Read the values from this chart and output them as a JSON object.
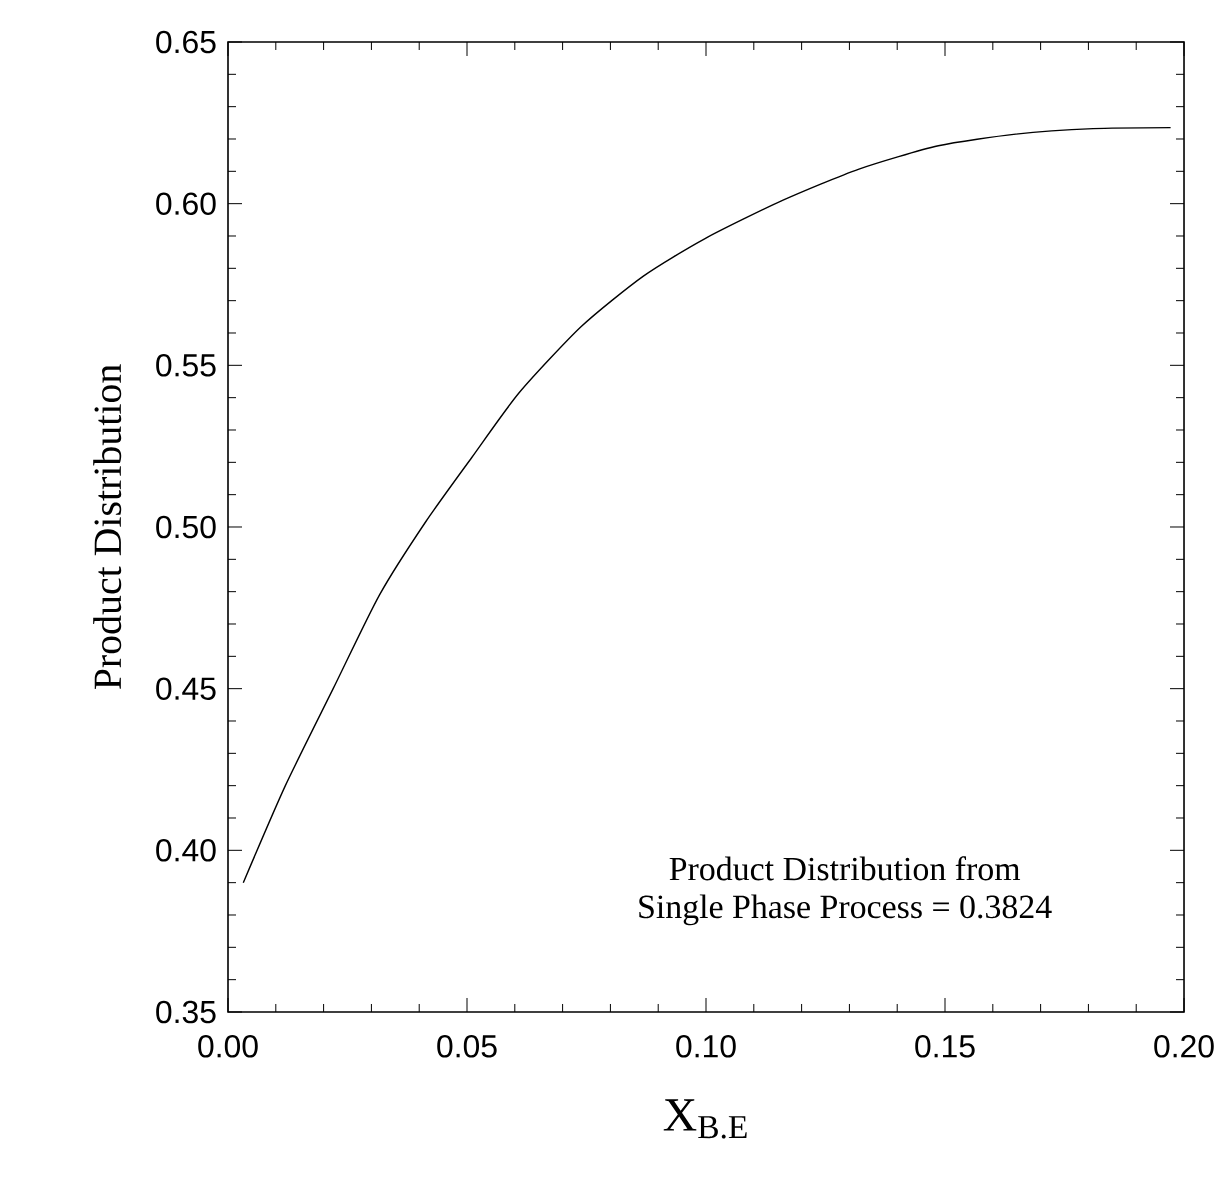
{
  "chart_data": {
    "type": "line",
    "xlabel": "X$_{B.E}$",
    "ylabel": "Product Distribution",
    "annotations": [
      "Product Distribution from",
      "Single Phase Process = 0.3824"
    ],
    "x": [
      0.0032,
      0.012,
      0.022,
      0.0317,
      0.0414,
      0.051,
      0.0609,
      0.0739,
      0.0869,
      0.0998,
      0.116,
      0.132,
      0.1486,
      0.1648,
      0.181,
      0.1972
    ],
    "series": [
      {
        "color": "#000000",
        "values": [
          0.39,
          0.42,
          0.45,
          0.479,
          0.5017,
          0.5215,
          0.5415,
          0.562,
          0.5776,
          0.5892,
          0.601,
          0.6107,
          0.6179,
          0.6215,
          0.6232,
          0.6235
        ]
      }
    ],
    "xlim": [
      0.0,
      0.2
    ],
    "ylim": [
      0.35,
      0.65
    ],
    "xticks": [
      {
        "value": 0.0,
        "label": "0.00"
      },
      {
        "value": 0.05,
        "label": "0.05"
      },
      {
        "value": 0.1,
        "label": "0.10"
      },
      {
        "value": 0.15,
        "label": "0.15"
      },
      {
        "value": 0.2,
        "label": "0.20"
      }
    ],
    "yticks": [
      {
        "value": 0.35,
        "label": "0.35"
      },
      {
        "value": 0.4,
        "label": "0.40"
      },
      {
        "value": 0.45,
        "label": "0.45"
      },
      {
        "value": 0.5,
        "label": "0.50"
      },
      {
        "value": 0.55,
        "label": "0.55"
      },
      {
        "value": 0.6,
        "label": "0.60"
      },
      {
        "value": 0.65,
        "label": "0.65"
      }
    ],
    "grid": false,
    "marker": "none",
    "line_style": "solid"
  }
}
